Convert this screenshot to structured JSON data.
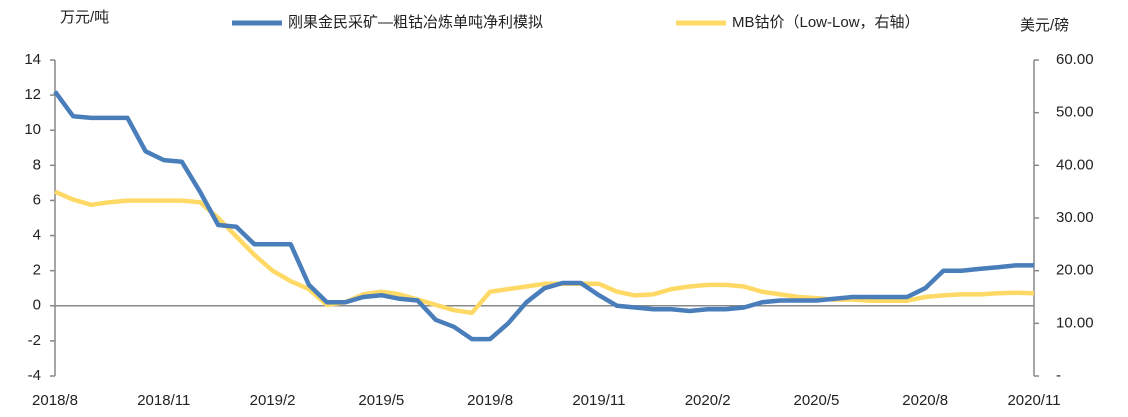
{
  "chart_data": {
    "type": "line",
    "y_label": "万元/吨",
    "y2_label": "美元/磅",
    "categories": [
      "2018/8",
      null,
      null,
      null,
      null,
      null,
      "2018/11",
      null,
      null,
      null,
      null,
      null,
      "2019/2",
      null,
      null,
      null,
      null,
      null,
      "2019/5",
      null,
      null,
      null,
      null,
      null,
      "2019/8",
      null,
      null,
      null,
      null,
      null,
      "2019/11",
      null,
      null,
      null,
      null,
      null,
      "2020/2",
      null,
      null,
      null,
      null,
      null,
      "2020/5",
      null,
      null,
      null,
      null,
      null,
      "2020/8",
      null,
      null,
      null,
      null,
      null,
      "2020/11"
    ],
    "series": [
      {
        "name": "刚果金民采矿—粗钴冶炼单吨净利模拟",
        "color": "#4a7ebb",
        "axis": "y",
        "values": [
          12.2,
          10.8,
          10.7,
          10.7,
          10.7,
          8.8,
          8.3,
          8.2,
          6.5,
          4.6,
          4.5,
          3.5,
          3.5,
          3.5,
          1.2,
          0.2,
          0.2,
          0.5,
          0.6,
          0.4,
          0.3,
          -0.8,
          -1.2,
          -1.9,
          -1.9,
          -1.0,
          0.2,
          1.0,
          1.3,
          1.3,
          0.6,
          0.0,
          -0.1,
          -0.2,
          -0.2,
          -0.3,
          -0.2,
          -0.2,
          -0.1,
          0.2,
          0.3,
          0.3,
          0.3,
          0.4,
          0.5,
          0.5,
          0.5,
          0.5,
          1.0,
          2.0,
          2.0,
          2.1,
          2.2,
          2.3,
          2.3
        ]
      },
      {
        "name": "MB钴价（Low-Low，右轴）",
        "color": "#ffd966",
        "axis": "y2",
        "values": [
          35,
          33.5,
          32.5,
          33,
          33.3,
          33.3,
          33.3,
          33.3,
          33,
          30,
          26.5,
          23,
          20,
          18,
          16.5,
          13.5,
          14,
          15.5,
          16,
          15.5,
          14.5,
          13.5,
          12.5,
          12,
          16,
          16.5,
          17,
          17.5,
          17.5,
          17.5,
          17.5,
          16,
          15.3,
          15.5,
          16.5,
          17,
          17.3,
          17.3,
          17,
          16,
          15.5,
          15,
          14.8,
          14.5,
          14.5,
          14.3,
          14.3,
          14.3,
          15,
          15.3,
          15.5,
          15.5,
          15.7,
          15.8,
          15.7
        ]
      }
    ],
    "ylim": [
      -4,
      14
    ],
    "yticks": [
      -4,
      -2,
      0,
      2,
      4,
      6,
      8,
      10,
      12,
      14
    ],
    "y2lim": [
      0,
      60
    ],
    "y2ticks": [
      {
        "value": 0,
        "label": "-"
      },
      {
        "value": 10,
        "label": "10.00"
      },
      {
        "value": 20,
        "label": "20.00"
      },
      {
        "value": 30,
        "label": "30.00"
      },
      {
        "value": 40,
        "label": "40.00"
      },
      {
        "value": 50,
        "label": "50.00"
      },
      {
        "value": 60,
        "label": "60.00"
      }
    ],
    "legend": "top"
  }
}
